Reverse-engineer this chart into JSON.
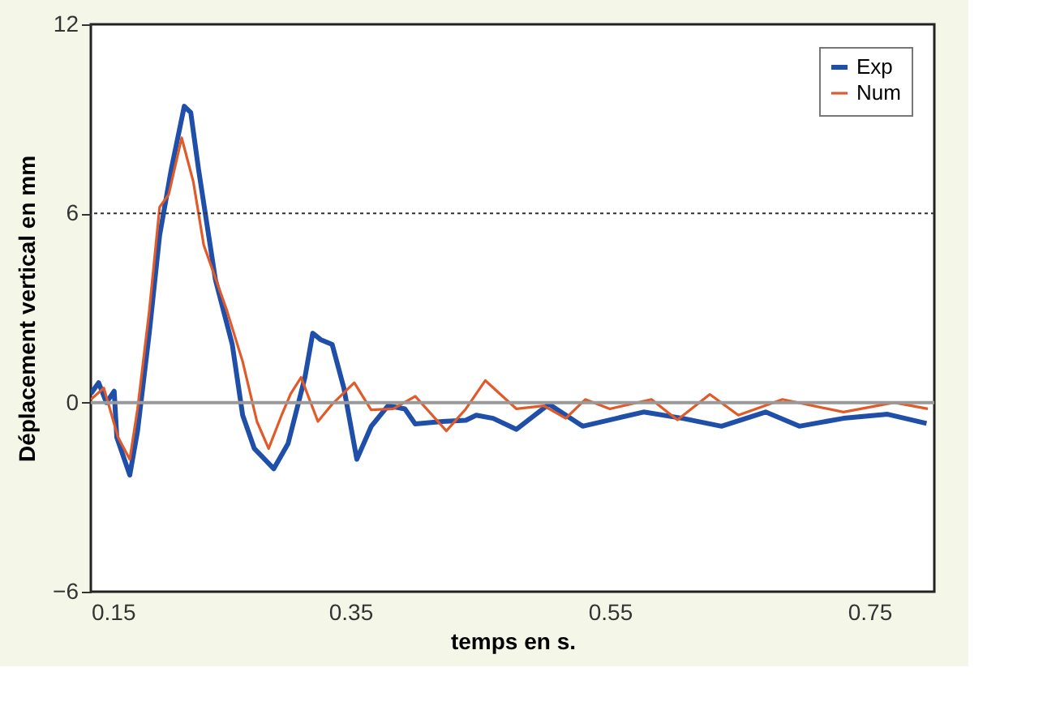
{
  "chart_data": {
    "type": "line",
    "xlabel": "temps en s.",
    "ylabel": "Déplacement vertical en mm",
    "xlim": [
      0.15,
      0.8
    ],
    "xticks": [
      0.15,
      0.35,
      0.55,
      0.75
    ],
    "ylim": [
      -6,
      12
    ],
    "yticks": [
      -6,
      0,
      6,
      12
    ],
    "ref_lines": [
      {
        "axis": "y",
        "value": 6,
        "color": "#333333",
        "line_style": "dotted"
      }
    ],
    "legend": "top right",
    "line_style": "solid",
    "marker": "none",
    "series": [
      {
        "name": "Exp",
        "color": "#1f4fa8",
        "x": [
          0.15,
          0.156,
          0.162,
          0.168,
          0.17,
          0.18,
          0.186,
          0.195,
          0.203,
          0.212,
          0.222,
          0.227,
          0.233,
          0.246,
          0.259,
          0.267,
          0.276,
          0.291,
          0.302,
          0.315,
          0.321,
          0.327,
          0.336,
          0.345,
          0.355,
          0.366,
          0.379,
          0.392,
          0.4,
          0.421,
          0.439,
          0.447,
          0.46,
          0.478,
          0.503,
          0.529,
          0.576,
          0.606,
          0.636,
          0.67,
          0.696,
          0.73,
          0.764,
          0.794
        ],
        "values": [
          0.28,
          0.63,
          0.0,
          0.36,
          -1.1,
          -2.3,
          -0.9,
          2.2,
          5.3,
          7.4,
          9.4,
          9.2,
          7.4,
          3.9,
          1.84,
          -0.4,
          -1.46,
          -2.1,
          -1.3,
          0.8,
          2.2,
          2.0,
          1.84,
          0.46,
          -1.8,
          -0.76,
          -0.1,
          -0.2,
          -0.68,
          -0.6,
          -0.56,
          -0.4,
          -0.5,
          -0.85,
          -0.05,
          -0.75,
          -0.3,
          -0.5,
          -0.75,
          -0.3,
          -0.75,
          -0.5,
          -0.37,
          -0.66
        ]
      },
      {
        "name": "Num",
        "color": "#e05a2a",
        "x": [
          0.15,
          0.16,
          0.171,
          0.18,
          0.186,
          0.195,
          0.203,
          0.21,
          0.22,
          0.229,
          0.237,
          0.255,
          0.267,
          0.278,
          0.287,
          0.297,
          0.304,
          0.312,
          0.325,
          0.336,
          0.353,
          0.366,
          0.383,
          0.4,
          0.424,
          0.439,
          0.454,
          0.478,
          0.499,
          0.516,
          0.531,
          0.55,
          0.582,
          0.602,
          0.627,
          0.649,
          0.683,
          0.73,
          0.769,
          0.795
        ],
        "values": [
          0.1,
          0.46,
          -1.1,
          -1.8,
          -0.2,
          2.9,
          6.2,
          6.6,
          8.4,
          7.0,
          5.0,
          2.9,
          1.3,
          -0.6,
          -1.46,
          -0.4,
          0.28,
          0.8,
          -0.6,
          -0.05,
          0.63,
          -0.23,
          -0.2,
          0.2,
          -0.9,
          -0.2,
          0.7,
          -0.2,
          -0.1,
          -0.5,
          0.1,
          -0.2,
          0.1,
          -0.55,
          0.26,
          -0.4,
          0.1,
          -0.3,
          0.0,
          -0.2
        ]
      }
    ]
  }
}
